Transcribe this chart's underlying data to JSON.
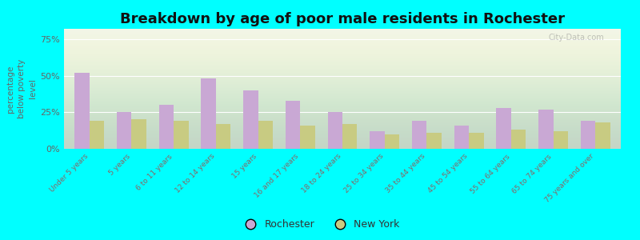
{
  "title": "Breakdown by age of poor male residents in Rochester",
  "ylabel": "percentage\nbelow poverty\nlevel",
  "categories": [
    "Under 5 years",
    "5 years",
    "6 to 11 years",
    "12 to 14 years",
    "15 years",
    "16 and 17 years",
    "18 to 24 years",
    "25 to 34 years",
    "35 to 44 years",
    "45 to 54 years",
    "55 to 64 years",
    "65 to 74 years",
    "75 years and over"
  ],
  "rochester": [
    52,
    25,
    30,
    48,
    40,
    33,
    25,
    12,
    19,
    16,
    28,
    27,
    19
  ],
  "new_york": [
    19,
    20,
    19,
    17,
    19,
    16,
    17,
    10,
    11,
    11,
    13,
    12,
    18
  ],
  "rochester_color": "#c9a8d4",
  "new_york_color": "#c8cb82",
  "yticks": [
    0,
    25,
    50,
    75
  ],
  "ytick_labels": [
    "0%",
    "25%",
    "50%",
    "75%"
  ],
  "ylim": [
    0,
    82
  ],
  "outer_bg": "#00ffff",
  "plot_bg_top": "#f0f4e8",
  "plot_bg_bottom": "#e0ead8",
  "title_fontsize": 13,
  "bar_width": 0.35,
  "watermark": "City-Data.com",
  "legend_labels": [
    "Rochester",
    "New York"
  ],
  "tick_color": "#886666",
  "ylabel_color": "#666666"
}
